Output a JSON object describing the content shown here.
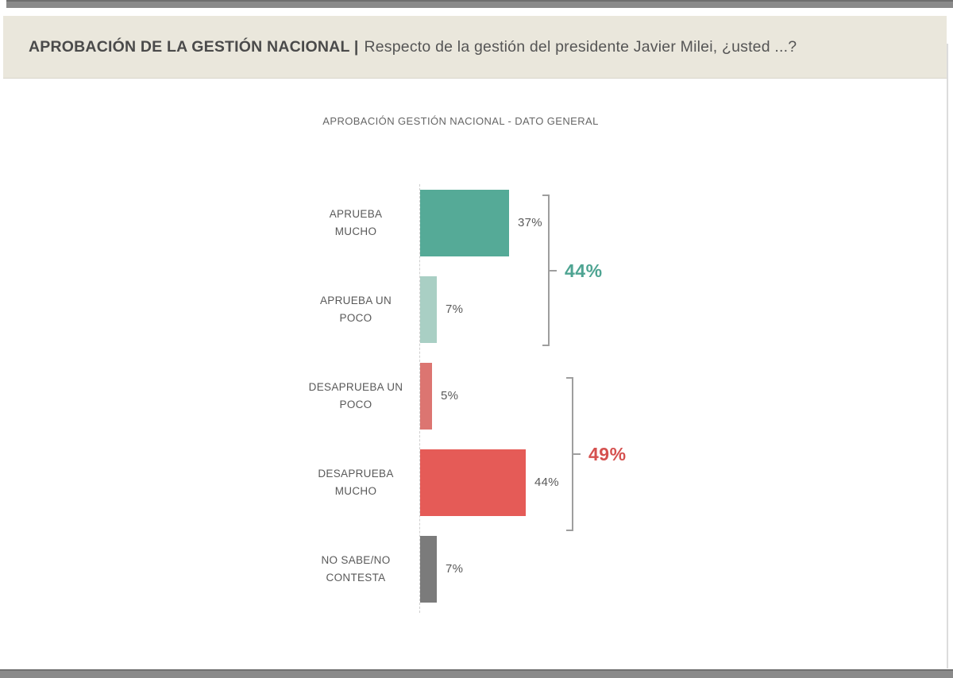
{
  "header": {
    "title_bold": "APROBACIÓN DE LA GESTIÓN NACIONAL |",
    "title_regular": "Respecto de la gestión del presidente Javier Milei, ¿usted ...?"
  },
  "chart_data": {
    "type": "bar",
    "orientation": "horizontal",
    "title": "APROBACIÓN GESTIÓN NACIONAL - DATO GENERAL",
    "categories": [
      "APRUEBA MUCHO",
      "APRUEBA UN POCO",
      "DESAPRUEBA UN POCO",
      "DESAPRUEBA MUCHO",
      "NO SABE/NO CONTESTA"
    ],
    "category_lines": [
      [
        "APRUEBA",
        "MUCHO"
      ],
      [
        "APRUEBA UN",
        "POCO"
      ],
      [
        "DESAPRUEBA UN",
        "POCO"
      ],
      [
        "DESAPRUEBA",
        "MUCHO"
      ],
      [
        "NO SABE/NO",
        "CONTESTA"
      ]
    ],
    "values": [
      37,
      7,
      5,
      44,
      7
    ],
    "value_labels": [
      "37%",
      "7%",
      "5%",
      "44%",
      "7%"
    ],
    "bar_colors": [
      "#55aa97",
      "#a9cfc4",
      "#dc7571",
      "#e55b57",
      "#7b7b7b"
    ],
    "xlim": [
      0,
      50
    ],
    "grid": "off",
    "legend": "none",
    "axis_baseline_style": "dotted",
    "groups": [
      {
        "label": "44%",
        "value": 44,
        "color": "#4ea492",
        "categories": [
          "APRUEBA MUCHO",
          "APRUEBA UN POCO"
        ]
      },
      {
        "label": "49%",
        "value": 49,
        "color": "#d5514f",
        "categories": [
          "DESAPRUEBA UN POCO",
          "DESAPRUEBA MUCHO"
        ]
      }
    ]
  },
  "frame_colors": {
    "header_background": "#eae7dc",
    "window_bars": "#8a8a8a",
    "text_dark": "#4a4a4a",
    "text_gray": "#595959",
    "bracket_gray": "#9e9e9e"
  }
}
